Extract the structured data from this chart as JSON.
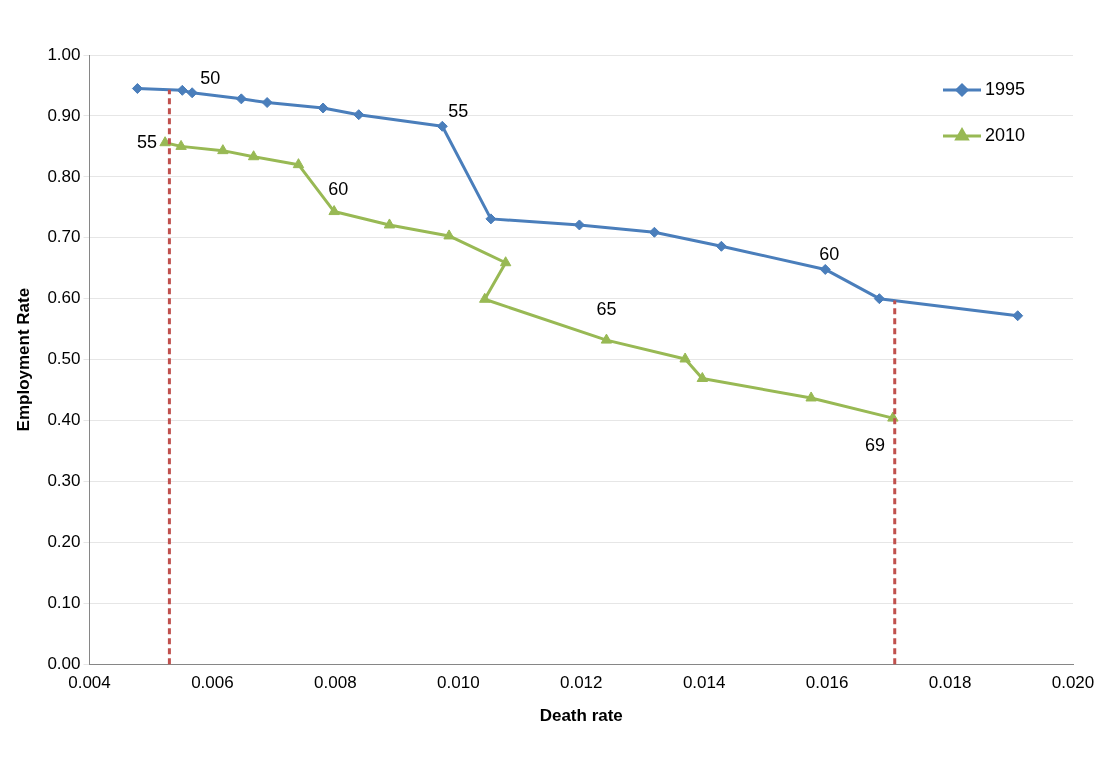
{
  "chart_data": {
    "type": "line",
    "xlabel": "Death rate",
    "ylabel": "Employment Rate",
    "xlim": [
      0.004,
      0.02
    ],
    "xticks": [
      {
        "value": 0.004,
        "label": "0.004"
      },
      {
        "value": 0.006,
        "label": "0.006"
      },
      {
        "value": 0.008,
        "label": "0.008"
      },
      {
        "value": 0.01,
        "label": "0.010"
      },
      {
        "value": 0.012,
        "label": "0.012"
      },
      {
        "value": 0.014,
        "label": "0.014"
      },
      {
        "value": 0.016,
        "label": "0.016"
      },
      {
        "value": 0.018,
        "label": "0.018"
      },
      {
        "value": 0.02,
        "label": "0.020"
      }
    ],
    "ylim": [
      0,
      1
    ],
    "yticks": [
      {
        "value": 0,
        "label": "0.00"
      },
      {
        "value": 0.1,
        "label": "0.10"
      },
      {
        "value": 0.2,
        "label": "0.20"
      },
      {
        "value": 0.3,
        "label": "0.30"
      },
      {
        "value": 0.4,
        "label": "0.40"
      },
      {
        "value": 0.5,
        "label": "0.50"
      },
      {
        "value": 0.6,
        "label": "0.60"
      },
      {
        "value": 0.7,
        "label": "0.70"
      },
      {
        "value": 0.8,
        "label": "0.80"
      },
      {
        "value": 0.9,
        "label": "0.90"
      },
      {
        "value": 1,
        "label": "1.00"
      }
    ],
    "grid": "y",
    "legend": "top right",
    "line_style": "solid",
    "series": [
      {
        "name": "1995",
        "color": "#4a7ebb",
        "marker": "diamond",
        "x": [
          0.00478,
          0.00551,
          0.00567,
          0.00647,
          0.00689,
          0.0078,
          0.00838,
          0.00974,
          0.01053,
          0.01197,
          0.01319,
          0.01428,
          0.01597,
          0.01685,
          0.0191
        ],
        "values": [
          0.945,
          0.942,
          0.938,
          0.928,
          0.922,
          0.913,
          0.902,
          0.883,
          0.731,
          0.721,
          0.709,
          0.686,
          0.648,
          0.6,
          0.572
        ]
      },
      {
        "name": "2010",
        "color": "#98b954",
        "marker": "triangle",
        "x": [
          0.00523,
          0.00549,
          0.00617,
          0.00667,
          0.0074,
          0.00798,
          0.00888,
          0.00985,
          0.01077,
          0.01043,
          0.01241,
          0.01369,
          0.01397,
          0.01574,
          0.01707
        ],
        "values": [
          0.856,
          0.85,
          0.843,
          0.833,
          0.82,
          0.743,
          0.721,
          0.703,
          0.659,
          0.599,
          0.532,
          0.501,
          0.469,
          0.437,
          0.404
        ]
      }
    ],
    "ref_lines": [
      {
        "axis": "x",
        "value": 0.0053,
        "color": "#c0504d",
        "line_style": "dashed"
      },
      {
        "axis": "x",
        "value": 0.0171,
        "color": "#c0504d",
        "line_style": "dashed"
      }
    ],
    "annotations": [
      {
        "text": "50",
        "x": 0.00567,
        "y": 0.938
      },
      {
        "text": "55",
        "x": 0.00974,
        "y": 0.883
      },
      {
        "text": "60",
        "x": 0.01597,
        "y": 0.648
      },
      {
        "text": "55",
        "x": 0.00523,
        "y": 0.856
      },
      {
        "text": "60",
        "x": 0.00798,
        "y": 0.743
      },
      {
        "text": "65",
        "x": 0.01241,
        "y": 0.532
      },
      {
        "text": "69",
        "x": 0.01707,
        "y": 0.404
      }
    ]
  }
}
